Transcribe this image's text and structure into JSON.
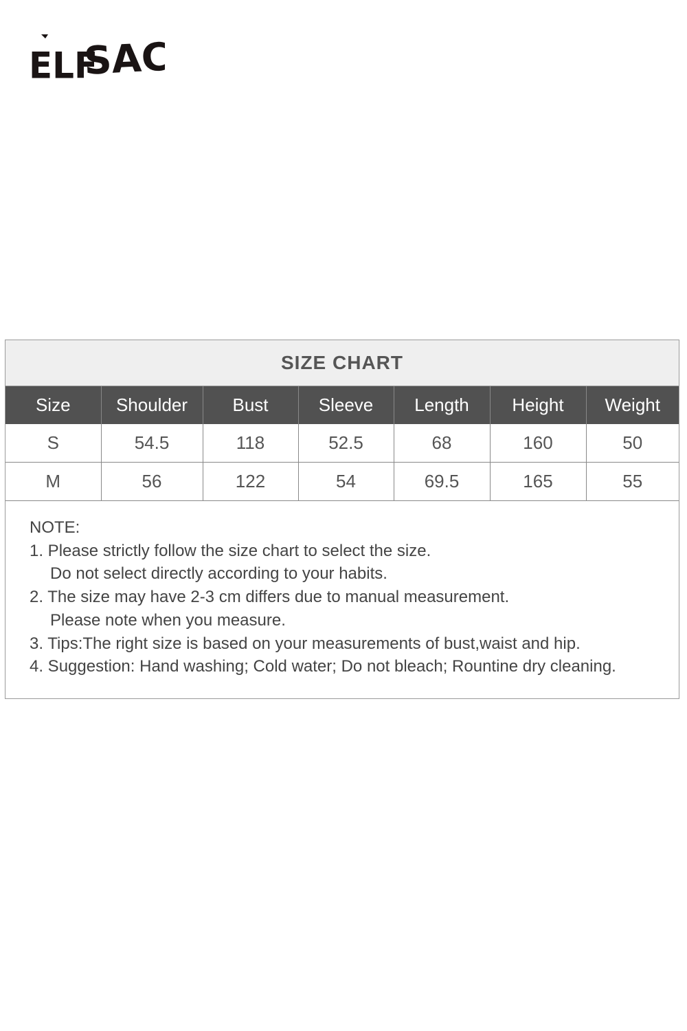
{
  "brand": {
    "logo_text": "ELFSACK"
  },
  "size_chart": {
    "title": "SIZE CHART",
    "headers": [
      "Size",
      "Shoulder",
      "Bust",
      "Sleeve",
      "Length",
      "Height",
      "Weight"
    ],
    "rows": [
      [
        "S",
        "54.5",
        "118",
        "52.5",
        "68",
        "160",
        "50"
      ],
      [
        "M",
        "56",
        "122",
        "54",
        "69.5",
        "165",
        "55"
      ]
    ]
  },
  "notes": {
    "heading": "NOTE:",
    "lines": [
      "1. Please strictly follow the size chart to select the size.",
      "Do not select directly according to your habits.",
      "2. The size may have 2-3 cm differs due to manual measurement.",
      "Please note when you measure.",
      "3. Tips:The right size is based on your measurements of bust,waist and hip.",
      "4. Suggestion: Hand washing; Cold water; Do not bleach; Rountine dry cleaning."
    ]
  },
  "colors": {
    "header_bg": "#515151",
    "title_bg": "#efefef",
    "border": "#9a9a9a"
  }
}
